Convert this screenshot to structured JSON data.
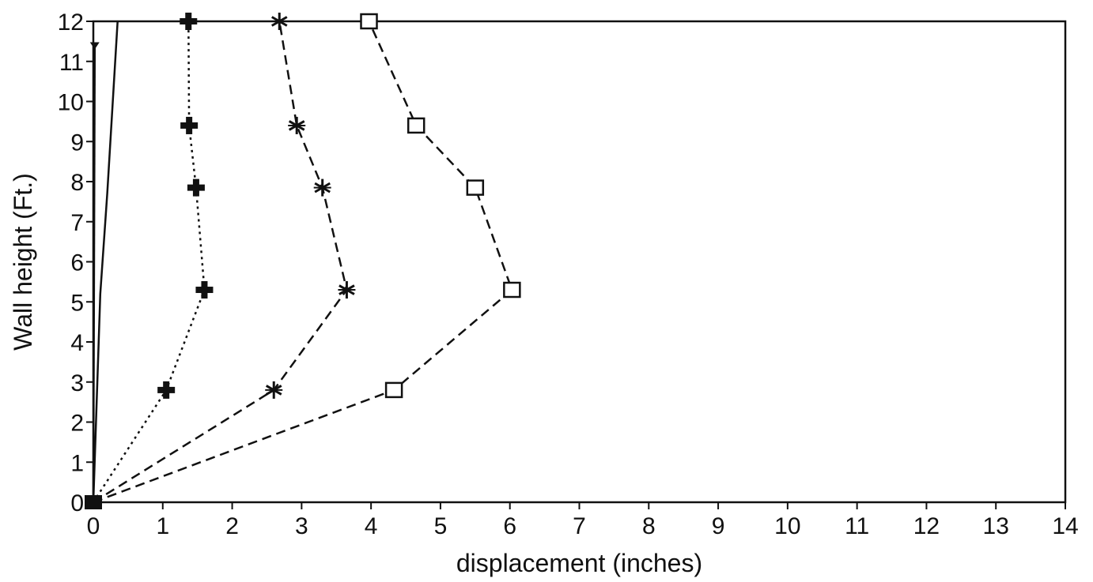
{
  "chart_data": {
    "type": "line",
    "xlabel": "displacement (inches)",
    "ylabel": "Wall height (Ft.)",
    "xlim": [
      0,
      14
    ],
    "ylim": [
      0,
      12
    ],
    "xticks": [
      "0",
      "1",
      "2",
      "3",
      "4",
      "5",
      "6",
      "7",
      "8",
      "9",
      "10",
      "11",
      "12",
      "13",
      "14"
    ],
    "yticks": [
      "0",
      "1",
      "2",
      "3",
      "4",
      "5",
      "6",
      "7",
      "8",
      "9",
      "10",
      "11",
      "12"
    ],
    "grid": false,
    "series": [
      {
        "marker": "none",
        "style": "solid",
        "points": [
          [
            0.0,
            0.0
          ],
          [
            0.1,
            5.2
          ],
          [
            0.2,
            7.7
          ],
          [
            0.35,
            12.0
          ]
        ]
      },
      {
        "marker": "triangle-down",
        "style": "solid",
        "points": [
          [
            0.0,
            0.0
          ],
          [
            0.02,
            11.4
          ]
        ]
      },
      {
        "marker": "plus",
        "style": "dotted",
        "points": [
          [
            0.0,
            0.0
          ],
          [
            1.05,
            2.8
          ],
          [
            1.6,
            5.3
          ],
          [
            1.48,
            7.85
          ],
          [
            1.38,
            9.4
          ],
          [
            1.37,
            12.0
          ]
        ]
      },
      {
        "marker": "asterisk",
        "style": "dashed",
        "points": [
          [
            0.0,
            0.0
          ],
          [
            2.6,
            2.8
          ],
          [
            3.65,
            5.3
          ],
          [
            3.3,
            7.85
          ],
          [
            2.93,
            9.4
          ],
          [
            2.68,
            12.0
          ]
        ]
      },
      {
        "marker": "square",
        "style": "dashed",
        "points": [
          [
            0.0,
            0.0
          ],
          [
            4.33,
            2.8
          ],
          [
            6.03,
            5.3
          ],
          [
            5.5,
            7.85
          ],
          [
            4.65,
            9.4
          ],
          [
            3.97,
            12.0
          ]
        ]
      }
    ],
    "colors": {
      "ink": "#111111",
      "background": "#ffffff"
    }
  }
}
